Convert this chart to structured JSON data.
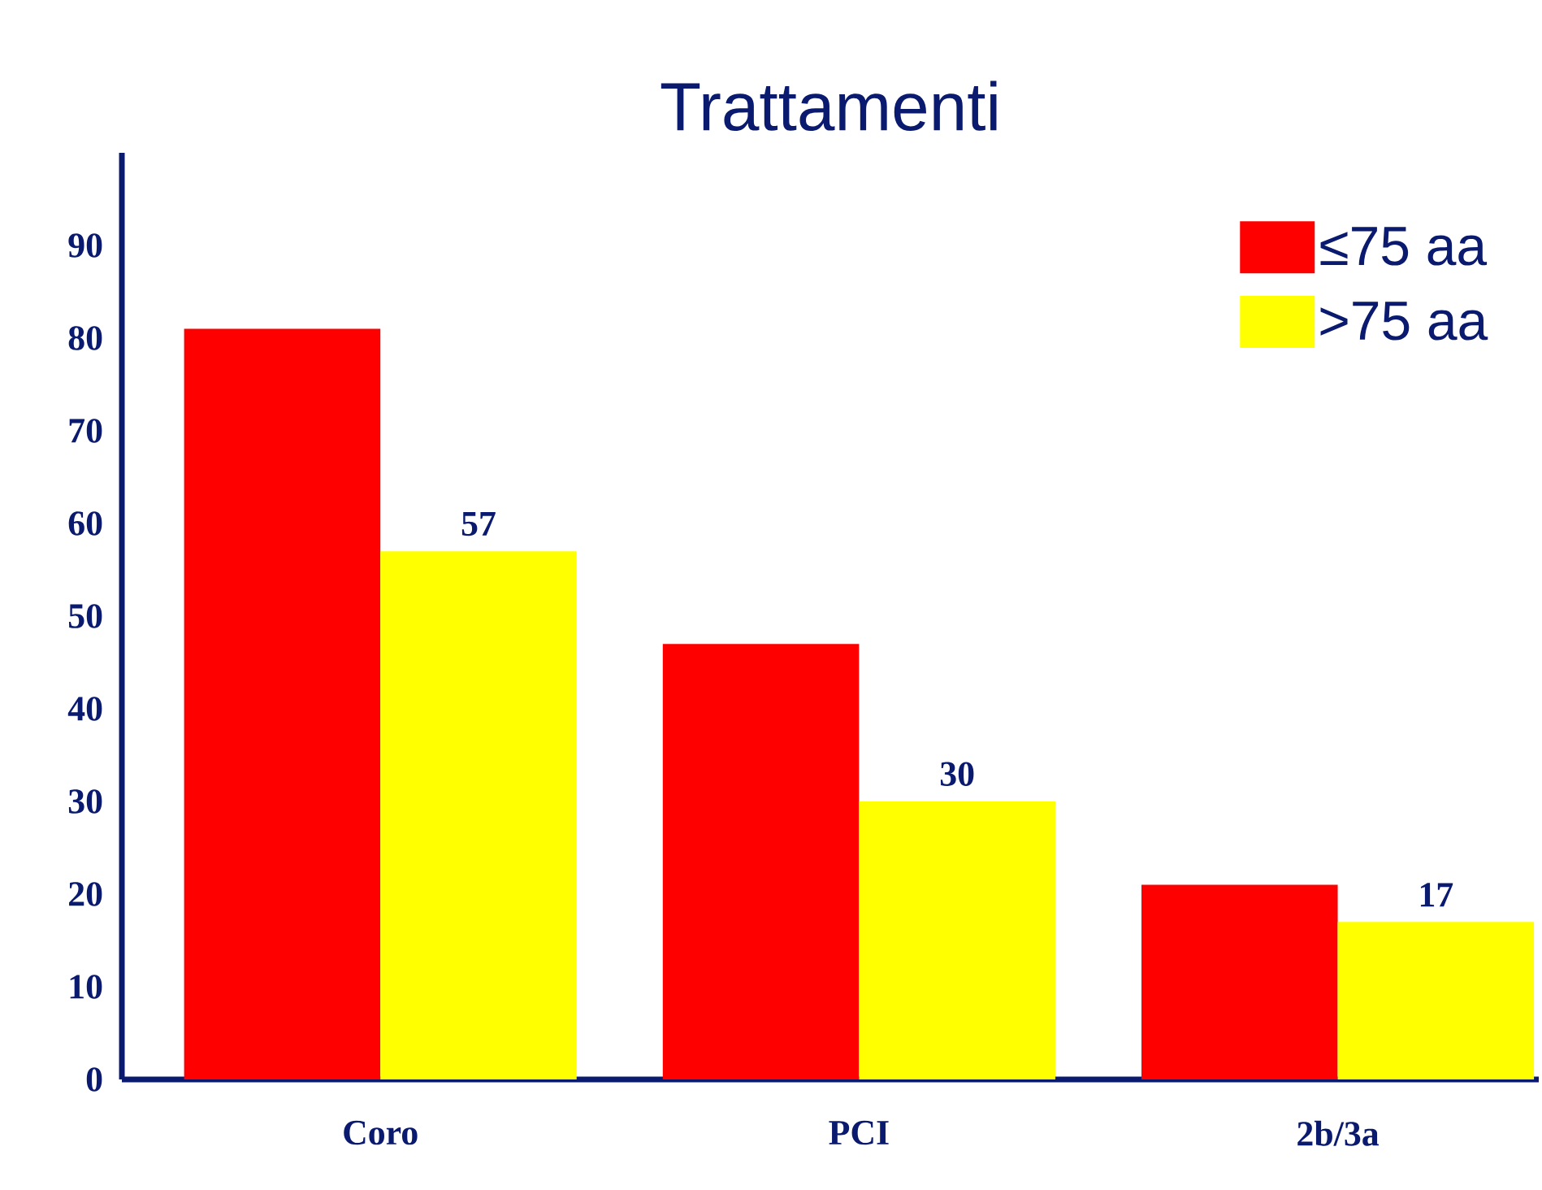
{
  "chart_data": {
    "type": "bar",
    "title": "Trattamenti",
    "categories": [
      "Coro",
      "PCI",
      "2b/3a"
    ],
    "series": [
      {
        "name": "≤75 aa",
        "color": "#ff0000",
        "values": [
          81,
          47,
          21
        ]
      },
      {
        "name": ">75 aa",
        "color": "#ffff00",
        "values": [
          57,
          30,
          17
        ],
        "value_labels": [
          "57",
          "30",
          "17"
        ]
      }
    ],
    "ylim": [
      0,
      100
    ],
    "yticks": [
      0,
      10,
      20,
      30,
      40,
      50,
      60,
      70,
      80,
      90
    ],
    "grid": false,
    "legend": "top right"
  }
}
